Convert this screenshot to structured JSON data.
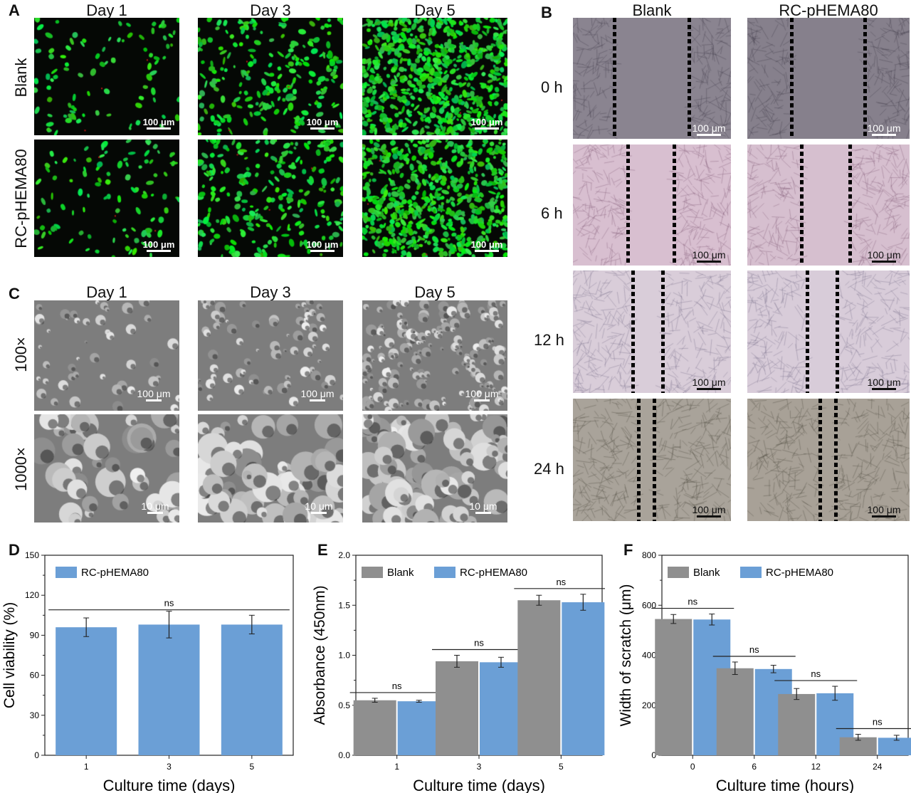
{
  "panels": {
    "A": {
      "label": "A",
      "columns": [
        "Day 1",
        "Day 3",
        "Day 5"
      ],
      "rows": [
        "Blank",
        "RC-pHEMA80"
      ],
      "scale": "100 μm"
    },
    "B": {
      "label": "B",
      "columns": [
        "Blank",
        "RC-pHEMA80"
      ],
      "rows": [
        "0 h",
        "6 h",
        "12 h",
        "24 h"
      ],
      "scale": "100 μm"
    },
    "C": {
      "label": "C",
      "columns": [
        "Day 1",
        "Day 3",
        "Day 5"
      ],
      "rows": [
        "100×",
        "1000×"
      ],
      "scale_low": "100 μm",
      "scale_high": "10 μm"
    },
    "D": {
      "label": "D"
    },
    "E": {
      "label": "E"
    },
    "F": {
      "label": "F"
    }
  },
  "colors": {
    "blank": "#8f8f8f",
    "rc": "#6b9fd6",
    "fluor": "#3fdc3f"
  },
  "chart_data": [
    {
      "id": "D",
      "type": "bar",
      "categories": [
        "1",
        "3",
        "5"
      ],
      "series": [
        {
          "name": "RC-pHEMA80",
          "values": [
            96,
            98,
            98
          ],
          "errors": [
            7,
            10,
            7
          ]
        }
      ],
      "xlabel": "Culture time (days)",
      "ylabel": "Cell viability (%)",
      "ylim": [
        0,
        150
      ],
      "yticks": [
        "0",
        "30",
        "60",
        "90",
        "120",
        "150"
      ],
      "annotations": [
        "ns"
      ]
    },
    {
      "id": "E",
      "type": "bar",
      "categories": [
        "1",
        "3",
        "5"
      ],
      "series": [
        {
          "name": "Blank",
          "values": [
            0.55,
            0.94,
            1.55
          ],
          "errors": [
            0.02,
            0.06,
            0.05
          ]
        },
        {
          "name": "RC-pHEMA80",
          "values": [
            0.54,
            0.93,
            1.53
          ],
          "errors": [
            0.01,
            0.05,
            0.08
          ]
        }
      ],
      "xlabel": "Culture time (days)",
      "ylabel": "Absorbance (450nm)",
      "ylim": [
        0,
        2.0
      ],
      "yticks": [
        "0.0",
        "0.5",
        "1.0",
        "1.5",
        "2.0"
      ],
      "annotations": [
        "ns",
        "ns",
        "ns"
      ]
    },
    {
      "id": "F",
      "type": "bar",
      "categories": [
        "0",
        "6",
        "12",
        "24"
      ],
      "series": [
        {
          "name": "Blank",
          "values": [
            545,
            348,
            245,
            72
          ],
          "errors": [
            18,
            25,
            22,
            12
          ]
        },
        {
          "name": "RC-pHEMA80",
          "values": [
            543,
            345,
            248,
            70
          ],
          "errors": [
            22,
            15,
            28,
            10
          ]
        }
      ],
      "xlabel": "Culture time (hours)",
      "ylabel": "Width of scratch (μm)",
      "ylim": [
        0,
        800
      ],
      "yticks": [
        "0",
        "200",
        "400",
        "600",
        "800"
      ],
      "annotations": [
        "ns",
        "ns",
        "ns",
        "ns"
      ]
    }
  ]
}
